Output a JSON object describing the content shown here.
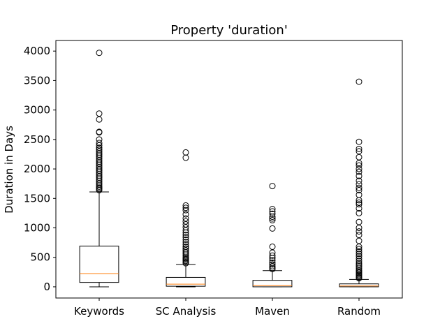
{
  "chart_data": {
    "type": "box",
    "title": "Property 'duration'",
    "xlabel": "",
    "ylabel": "Duration in Days",
    "ylim": [
      -190,
      4180
    ],
    "yticks": [
      0,
      500,
      1000,
      1500,
      2000,
      2500,
      3000,
      3500,
      4000
    ],
    "grid": false,
    "categories": [
      "Keywords",
      "SC Analysis",
      "Maven",
      "Random"
    ],
    "boxes": [
      {
        "name": "Keywords",
        "whisker_low": 0,
        "q1": 75,
        "median": 225,
        "q3": 690,
        "whisker_high": 1610,
        "outliers": [
          3970,
          2940,
          2840,
          2630,
          2620,
          2500,
          2440,
          2400,
          2360,
          2330,
          2300,
          2270,
          2240,
          2210,
          2180,
          2150,
          2120,
          2090,
          2060,
          2030,
          2000,
          1970,
          1940,
          1910,
          1880,
          1850,
          1820,
          1790,
          1760,
          1730,
          1700,
          1680,
          1660,
          1640
        ]
      },
      {
        "name": "SC Analysis",
        "whisker_low": 0,
        "q1": 10,
        "median": 45,
        "q3": 160,
        "whisker_high": 380,
        "outliers": [
          2280,
          2190,
          1380,
          1340,
          1300,
          1230,
          1160,
          1110,
          1060,
          1010,
          960,
          920,
          880,
          840,
          800,
          760,
          720,
          680,
          650,
          620,
          590,
          560,
          530,
          500,
          480,
          460,
          440,
          420,
          400
        ]
      },
      {
        "name": "Maven",
        "whisker_low": 0,
        "q1": 0,
        "median": 20,
        "q3": 110,
        "whisker_high": 275,
        "outliers": [
          1710,
          1320,
          1280,
          1240,
          1190,
          1160,
          1130,
          990,
          680,
          580,
          530,
          490,
          450,
          410,
          380,
          350,
          320,
          300
        ]
      },
      {
        "name": "Random",
        "whisker_low": 0,
        "q1": 0,
        "median": 15,
        "q3": 50,
        "whisker_high": 125,
        "outliers": [
          3480,
          2460,
          2340,
          2300,
          2200,
          2100,
          2060,
          2000,
          1950,
          1880,
          1800,
          1740,
          1680,
          1640,
          1560,
          1470,
          1430,
          1400,
          1330,
          1250,
          1100,
          1000,
          940,
          880,
          780,
          680,
          640,
          600,
          560,
          520,
          480,
          440,
          400,
          370,
          340,
          310,
          280,
          260,
          240,
          220,
          200,
          180,
          160,
          145
        ]
      }
    ]
  }
}
